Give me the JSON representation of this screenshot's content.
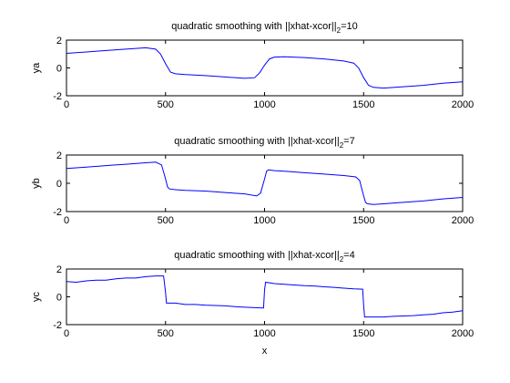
{
  "chart_data": [
    {
      "type": "line",
      "title": {
        "main": "quadratic smoothing with ||xhat-xcor||",
        "sub": "2",
        "tail": "=10"
      },
      "xlabel": "",
      "ylabel": "ya",
      "xlim": [
        0,
        2000
      ],
      "ylim": [
        -2,
        2
      ],
      "xticks": [
        0,
        500,
        1000,
        1500,
        2000
      ],
      "yticks": [
        -2,
        0,
        2
      ],
      "grid": false,
      "color": "#0000ff",
      "x": [
        0,
        100,
        200,
        300,
        400,
        450,
        475,
        500,
        525,
        550,
        600,
        700,
        800,
        900,
        950,
        975,
        1000,
        1025,
        1050,
        1100,
        1200,
        1300,
        1400,
        1450,
        1475,
        1500,
        1525,
        1550,
        1600,
        1700,
        1800,
        1900,
        2000
      ],
      "values": [
        1.05,
        1.15,
        1.25,
        1.35,
        1.45,
        1.35,
        1.0,
        0.3,
        -0.3,
        -0.42,
        -0.48,
        -0.55,
        -0.65,
        -0.75,
        -0.7,
        -0.35,
        0.2,
        0.65,
        0.78,
        0.8,
        0.75,
        0.65,
        0.5,
        0.35,
        0.0,
        -0.7,
        -1.25,
        -1.4,
        -1.45,
        -1.35,
        -1.25,
        -1.1,
        -1.0
      ]
    },
    {
      "type": "line",
      "title": {
        "main": "quadratic smoothing with ||xhat-xcor||",
        "sub": "2",
        "tail": "=7"
      },
      "xlabel": "",
      "ylabel": "yb",
      "xlim": [
        0,
        2000
      ],
      "ylim": [
        -2,
        2
      ],
      "xticks": [
        0,
        500,
        1000,
        1500,
        2000
      ],
      "yticks": [
        -2,
        0,
        2
      ],
      "grid": false,
      "color": "#0000ff",
      "x": [
        0,
        100,
        200,
        300,
        400,
        450,
        480,
        500,
        510,
        520,
        550,
        600,
        700,
        800,
        900,
        960,
        980,
        1000,
        1010,
        1020,
        1050,
        1100,
        1200,
        1300,
        1400,
        1460,
        1480,
        1500,
        1510,
        1520,
        1550,
        1600,
        1700,
        1800,
        1900,
        2000
      ],
      "values": [
        1.05,
        1.15,
        1.25,
        1.35,
        1.45,
        1.5,
        1.3,
        0.3,
        -0.25,
        -0.4,
        -0.45,
        -0.5,
        -0.55,
        -0.65,
        -0.75,
        -0.9,
        -0.7,
        0.3,
        0.85,
        0.95,
        0.9,
        0.85,
        0.75,
        0.65,
        0.55,
        0.45,
        0.2,
        -0.9,
        -1.35,
        -1.45,
        -1.5,
        -1.45,
        -1.35,
        -1.25,
        -1.1,
        -1.0
      ]
    },
    {
      "type": "line",
      "title": {
        "main": "quadratic smoothing with ||xhat-xcor||",
        "sub": "2",
        "tail": "=4"
      },
      "xlabel": "x",
      "ylabel": "yc",
      "xlim": [
        0,
        2000
      ],
      "ylim": [
        -2,
        2
      ],
      "xticks": [
        0,
        500,
        1000,
        1500,
        2000
      ],
      "yticks": [
        -2,
        0,
        2
      ],
      "grid": false,
      "color": "#0000ff",
      "x": [
        0,
        50,
        100,
        150,
        200,
        250,
        300,
        350,
        400,
        450,
        490,
        500,
        505,
        550,
        600,
        650,
        700,
        750,
        800,
        850,
        900,
        950,
        995,
        1000,
        1005,
        1050,
        1100,
        1150,
        1200,
        1250,
        1300,
        1350,
        1400,
        1450,
        1495,
        1500,
        1505,
        1550,
        1600,
        1650,
        1700,
        1750,
        1800,
        1850,
        1900,
        1950,
        2000
      ],
      "values": [
        1.1,
        1.05,
        1.15,
        1.2,
        1.2,
        1.3,
        1.35,
        1.35,
        1.45,
        1.5,
        1.5,
        0.3,
        -0.45,
        -0.45,
        -0.55,
        -0.55,
        -0.6,
        -0.62,
        -0.65,
        -0.7,
        -0.75,
        -0.78,
        -0.8,
        0.5,
        1.05,
        0.95,
        0.9,
        0.85,
        0.8,
        0.78,
        0.72,
        0.68,
        0.62,
        0.58,
        0.55,
        -0.6,
        -1.45,
        -1.45,
        -1.45,
        -1.4,
        -1.38,
        -1.35,
        -1.3,
        -1.25,
        -1.15,
        -1.1,
        -1.0
      ]
    }
  ]
}
